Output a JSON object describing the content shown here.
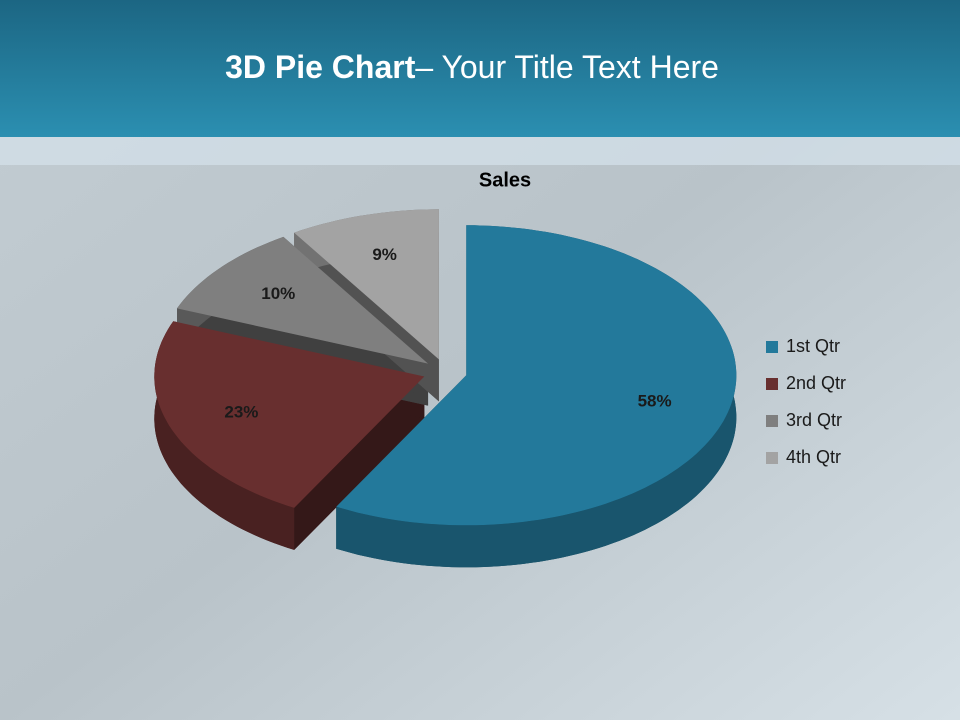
{
  "slide": {
    "title_bold": "3D Pie Chart",
    "title_rest": "– Your Title Text Here"
  },
  "chart_data": {
    "type": "pie3d",
    "title": "Sales",
    "categories": [
      "1st Qtr",
      "2nd Qtr",
      "3rd Qtr",
      "4th Qtr"
    ],
    "values": [
      58,
      23,
      10,
      9
    ],
    "value_labels": [
      "58%",
      "23%",
      "10%",
      "9%"
    ],
    "colors": [
      "#23799b",
      "#682f2f",
      "#7f7f7f",
      "#a3a3a3"
    ],
    "legend": "right"
  }
}
